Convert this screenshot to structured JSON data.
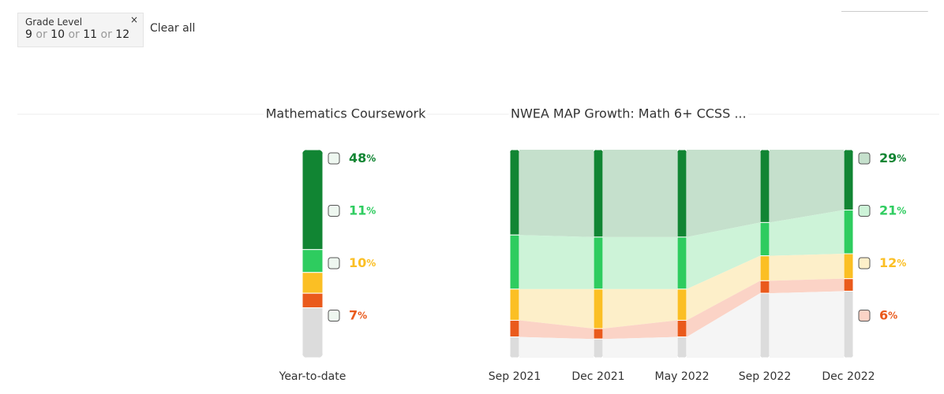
{
  "filter": {
    "label": "Grade Level",
    "values": [
      "9",
      "10",
      "11",
      "12"
    ],
    "joiner": "or",
    "close": "×",
    "clear": "Clear all"
  },
  "chart_data": [
    {
      "type": "stacked-bar",
      "title": "Mathematics Coursework",
      "categories": [
        "Year-to-date"
      ],
      "unit": "%",
      "ylim": [
        0,
        100
      ],
      "series": [
        {
          "color": "#118533",
          "values": [
            48
          ]
        },
        {
          "color": "#2ecc5f",
          "values": [
            11
          ]
        },
        {
          "color": "#fbbf24",
          "values": [
            10
          ]
        },
        {
          "color": "#ea5a1c",
          "values": [
            7
          ]
        },
        {
          "color": "#dcdcdc",
          "values": [
            24
          ]
        }
      ]
    },
    {
      "type": "stacked-flow",
      "title": "NWEA MAP Growth: Math 6+ CCSS ...",
      "categories": [
        "Sep 2021",
        "Dec 2021",
        "May 2022",
        "Sep 2022",
        "Dec 2022"
      ],
      "unit": "%",
      "ylim": [
        0,
        100
      ],
      "series": [
        {
          "color": "#118533",
          "band": "#c5e0cc",
          "values": [
            41,
            42,
            42,
            35,
            29
          ]
        },
        {
          "color": "#2ecc5f",
          "band": "#cdf3d8",
          "values": [
            26,
            25,
            25,
            16,
            21
          ]
        },
        {
          "color": "#fbbf24",
          "band": "#fdefc9",
          "values": [
            15,
            19,
            15,
            12,
            12
          ]
        },
        {
          "color": "#ea5a1c",
          "band": "#fbd3c6",
          "values": [
            8,
            5,
            8,
            6,
            6
          ]
        },
        {
          "color": "#dcdcdc",
          "band": "#f5f5f5",
          "values": [
            10,
            9,
            10,
            31,
            32
          ]
        }
      ]
    }
  ]
}
